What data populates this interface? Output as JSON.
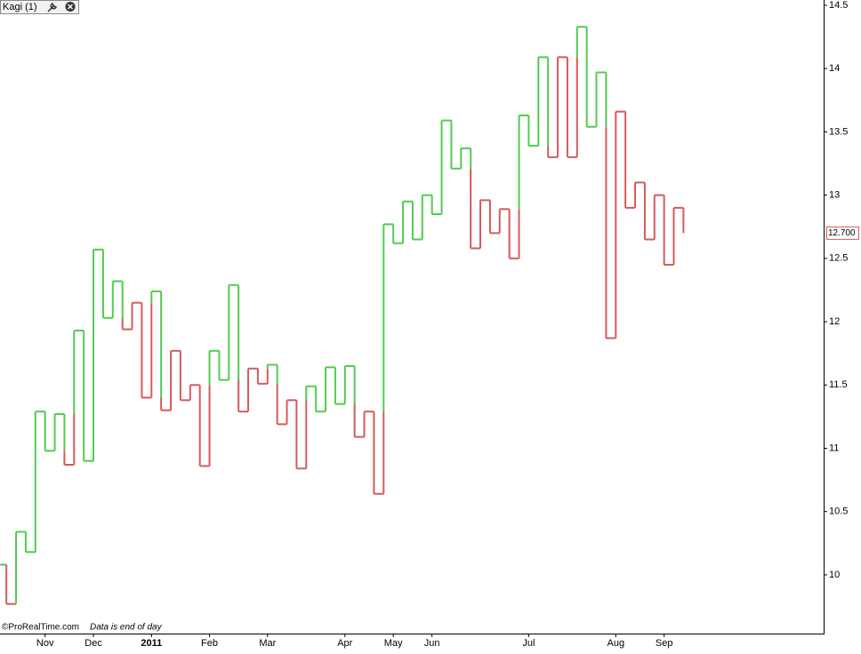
{
  "chart_data": {
    "type": "kagi",
    "header": "Kagi (1)",
    "footer_copyright": "©ProRealTime.com",
    "footer_note": "Data is end of day",
    "values": [
      10.08,
      9.77,
      10.34,
      10.18,
      11.29,
      10.98,
      11.27,
      10.87,
      11.93,
      10.9,
      12.57,
      12.03,
      12.32,
      11.94,
      12.15,
      11.4,
      12.24,
      11.3,
      11.77,
      11.38,
      11.5,
      10.86,
      11.77,
      11.54,
      12.29,
      11.29,
      11.63,
      11.51,
      11.66,
      11.19,
      11.38,
      10.84,
      11.49,
      11.29,
      11.64,
      11.35,
      11.65,
      11.09,
      11.29,
      10.64,
      12.77,
      12.62,
      12.95,
      12.65,
      13.0,
      12.85,
      13.59,
      13.21,
      13.37,
      12.58,
      12.96,
      12.7,
      12.89,
      12.5,
      13.63,
      13.39,
      14.09,
      13.3,
      14.09,
      13.3,
      14.33,
      13.54,
      13.97,
      11.87,
      13.66,
      12.9,
      13.1,
      12.65,
      13.0,
      12.45,
      12.9,
      12.7
    ],
    "last_value_label": "12.700",
    "up_color": "#4fcc4f",
    "down_color": "#d65a5a",
    "xlim": [
      -0.66,
      84.4
    ],
    "ylim": [
      9.536,
      14.542
    ],
    "xticks": [
      {
        "value": 4,
        "label": "Nov"
      },
      {
        "value": 9,
        "label": "Dec"
      },
      {
        "value": 15,
        "label": "2011"
      },
      {
        "value": 21,
        "label": "Feb"
      },
      {
        "value": 27,
        "label": "Mar"
      },
      {
        "value": 35,
        "label": "Apr"
      },
      {
        "value": 40,
        "label": "May"
      },
      {
        "value": 44,
        "label": "Jun"
      },
      {
        "value": 54,
        "label": "Jul"
      },
      {
        "value": 63,
        "label": "Aug"
      },
      {
        "value": 68,
        "label": "Sep"
      }
    ],
    "yticks": [
      10,
      10.5,
      11,
      11.5,
      12,
      12.5,
      13,
      13.5,
      14,
      14.5
    ]
  }
}
